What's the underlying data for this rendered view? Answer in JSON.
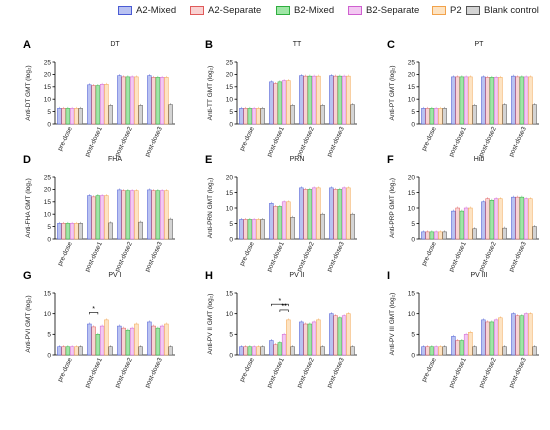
{
  "legend": [
    {
      "label": "A2-Mixed",
      "fill": "#b9c2f2",
      "stroke": "#4a5bd4"
    },
    {
      "label": "A2-Separate",
      "fill": "#f9d2d2",
      "stroke": "#e05a5a"
    },
    {
      "label": "B2-Mixed",
      "fill": "#9fe6a6",
      "stroke": "#2fae3f"
    },
    {
      "label": "B2-Separate",
      "fill": "#f3c8f2",
      "stroke": "#cf5fd0"
    },
    {
      "label": "P2",
      "fill": "#fde3c2",
      "stroke": "#f2a24a"
    },
    {
      "label": "Blank control",
      "fill": "#d4d4d4",
      "stroke": "#555555"
    }
  ],
  "categories": [
    "pre-dose",
    "post-dose1",
    "post-dose2",
    "post-dose3"
  ],
  "chart_data": [
    {
      "type": "bar",
      "letter": "A",
      "title": "DT",
      "ylabel": "Anti-DT GMT",
      "ylabel_unit": "(log₂)",
      "ylim": [
        0,
        25
      ],
      "yticks": [
        0,
        5,
        10,
        15,
        20,
        25
      ],
      "categories": [
        "pre-dose",
        "post-dose1",
        "post-dose2",
        "post-dose3"
      ],
      "series": [
        {
          "name": "A2-Mixed",
          "values": [
            6.3,
            15.8,
            19.5,
            19.5
          ]
        },
        {
          "name": "A2-Separate",
          "values": [
            6.3,
            15.5,
            19.0,
            18.8
          ]
        },
        {
          "name": "B2-Mixed",
          "values": [
            6.3,
            15.5,
            19.0,
            18.8
          ]
        },
        {
          "name": "B2-Separate",
          "values": [
            6.3,
            16.0,
            19.0,
            18.8
          ]
        },
        {
          "name": "P2",
          "values": [
            6.3,
            16.0,
            19.0,
            18.8
          ]
        },
        {
          "name": "Blank control",
          "values": [
            6.3,
            7.5,
            7.5,
            7.8
          ]
        }
      ]
    },
    {
      "type": "bar",
      "letter": "B",
      "title": "TT",
      "ylabel": "Anti-TT GMT",
      "ylabel_unit": "(log₂)",
      "ylim": [
        0,
        25
      ],
      "yticks": [
        0,
        5,
        10,
        15,
        20,
        25
      ],
      "categories": [
        "pre-dose",
        "post-dose1",
        "post-dose2",
        "post-dose3"
      ],
      "series": [
        {
          "name": "A2-Mixed",
          "values": [
            6.3,
            17.0,
            19.5,
            19.5
          ]
        },
        {
          "name": "A2-Separate",
          "values": [
            6.3,
            16.3,
            19.3,
            19.3
          ]
        },
        {
          "name": "B2-Mixed",
          "values": [
            6.3,
            17.0,
            19.3,
            19.3
          ]
        },
        {
          "name": "B2-Separate",
          "values": [
            6.3,
            17.5,
            19.3,
            19.3
          ]
        },
        {
          "name": "P2",
          "values": [
            6.3,
            17.5,
            19.3,
            19.3
          ]
        },
        {
          "name": "Blank control",
          "values": [
            6.3,
            7.5,
            7.5,
            7.8
          ]
        }
      ]
    },
    {
      "type": "bar",
      "letter": "C",
      "title": "PT",
      "ylabel": "Anti-PT GMT",
      "ylabel_unit": "(log₂)",
      "ylim": [
        0,
        25
      ],
      "yticks": [
        0,
        5,
        10,
        15,
        20,
        25
      ],
      "categories": [
        "pre-dose",
        "post-dose1",
        "post-dose2",
        "post-dose3"
      ],
      "series": [
        {
          "name": "A2-Mixed",
          "values": [
            6.3,
            19.0,
            19.0,
            19.3
          ]
        },
        {
          "name": "A2-Separate",
          "values": [
            6.3,
            19.0,
            18.8,
            19.0
          ]
        },
        {
          "name": "B2-Mixed",
          "values": [
            6.3,
            19.0,
            18.8,
            19.0
          ]
        },
        {
          "name": "B2-Separate",
          "values": [
            6.3,
            19.0,
            18.8,
            19.0
          ]
        },
        {
          "name": "P2",
          "values": [
            6.3,
            19.0,
            18.8,
            19.0
          ]
        },
        {
          "name": "Blank control",
          "values": [
            6.3,
            7.5,
            7.8,
            7.8
          ]
        }
      ]
    },
    {
      "type": "bar",
      "letter": "D",
      "title": "FHA",
      "ylabel": "Anti-FHA GMT",
      "ylabel_unit": "(log₂)",
      "ylim": [
        0,
        25
      ],
      "yticks": [
        0,
        5,
        10,
        15,
        20,
        25
      ],
      "categories": [
        "pre-dose",
        "post-dose1",
        "post-dose2",
        "post-dose3"
      ],
      "series": [
        {
          "name": "A2-Mixed",
          "values": [
            6.3,
            17.5,
            19.8,
            19.8
          ]
        },
        {
          "name": "A2-Separate",
          "values": [
            6.3,
            17.0,
            19.5,
            19.5
          ]
        },
        {
          "name": "B2-Mixed",
          "values": [
            6.3,
            17.5,
            19.5,
            19.5
          ]
        },
        {
          "name": "B2-Separate",
          "values": [
            6.3,
            17.5,
            19.5,
            19.5
          ]
        },
        {
          "name": "P2",
          "values": [
            6.3,
            17.5,
            19.5,
            19.5
          ]
        },
        {
          "name": "Blank control",
          "values": [
            6.3,
            6.5,
            6.8,
            8.0
          ]
        }
      ]
    },
    {
      "type": "bar",
      "letter": "E",
      "title": "PRN",
      "ylabel": "Anti-PRN GMT",
      "ylabel_unit": "(log₂)",
      "ylim": [
        0,
        20
      ],
      "yticks": [
        0,
        5,
        10,
        15,
        20
      ],
      "categories": [
        "pre-dose",
        "post-dose1",
        "post-dose2",
        "post-dose3"
      ],
      "series": [
        {
          "name": "A2-Mixed",
          "values": [
            6.3,
            11.5,
            16.5,
            16.5
          ]
        },
        {
          "name": "A2-Separate",
          "values": [
            6.3,
            10.5,
            16.0,
            16.0
          ]
        },
        {
          "name": "B2-Mixed",
          "values": [
            6.3,
            10.5,
            16.0,
            16.0
          ]
        },
        {
          "name": "B2-Separate",
          "values": [
            6.3,
            12.0,
            16.5,
            16.5
          ]
        },
        {
          "name": "P2",
          "values": [
            6.3,
            12.0,
            16.5,
            16.5
          ]
        },
        {
          "name": "Blank control",
          "values": [
            6.3,
            7.0,
            8.0,
            8.0
          ]
        }
      ]
    },
    {
      "type": "bar",
      "letter": "F",
      "title": "Hib",
      "ylabel": "Anti-PRP GMT",
      "ylabel_unit": "(log₂)",
      "ylim": [
        0,
        20
      ],
      "yticks": [
        0,
        5,
        10,
        15,
        20
      ],
      "categories": [
        "pre-dose",
        "post-dose1",
        "post-dose2",
        "post-dose3"
      ],
      "series": [
        {
          "name": "A2-Mixed",
          "values": [
            2.3,
            9.0,
            12.0,
            13.5
          ]
        },
        {
          "name": "A2-Separate",
          "values": [
            2.3,
            10.0,
            13.0,
            13.5
          ]
        },
        {
          "name": "B2-Mixed",
          "values": [
            2.3,
            9.0,
            12.5,
            13.5
          ]
        },
        {
          "name": "B2-Separate",
          "values": [
            2.3,
            10.0,
            13.0,
            13.0
          ]
        },
        {
          "name": "P2",
          "values": [
            2.3,
            10.0,
            13.0,
            13.0
          ]
        },
        {
          "name": "Blank control",
          "values": [
            2.3,
            3.3,
            3.5,
            4.0
          ]
        }
      ]
    },
    {
      "type": "bar",
      "letter": "G",
      "title": "PV I",
      "ylabel": "Anti-PVI GMT",
      "ylabel_unit": "(log₂)",
      "ylim": [
        0,
        15
      ],
      "yticks": [
        0,
        5,
        10,
        15
      ],
      "categories": [
        "pre-dose",
        "post-dose1",
        "post-dose2",
        "post-dose3"
      ],
      "series": [
        {
          "name": "A2-Mixed",
          "values": [
            2.0,
            7.5,
            7.0,
            8.0
          ]
        },
        {
          "name": "A2-Separate",
          "values": [
            2.0,
            6.8,
            6.5,
            7.0
          ]
        },
        {
          "name": "B2-Mixed",
          "values": [
            2.0,
            5.0,
            6.0,
            6.5
          ]
        },
        {
          "name": "B2-Separate",
          "values": [
            2.0,
            7.0,
            6.5,
            7.0
          ]
        },
        {
          "name": "P2",
          "values": [
            2.0,
            8.5,
            7.5,
            7.5
          ]
        },
        {
          "name": "Blank control",
          "values": [
            2.0,
            2.0,
            2.0,
            2.0
          ]
        }
      ]
    },
    {
      "type": "bar",
      "letter": "H",
      "title": "PV II",
      "ylabel": "Anti-PV II GMT",
      "ylabel_unit": "(log₂)",
      "ylim": [
        0,
        15
      ],
      "yticks": [
        0,
        5,
        10,
        15
      ],
      "categories": [
        "pre-dose",
        "post-dose1",
        "post-dose2",
        "post-dose3"
      ],
      "series": [
        {
          "name": "A2-Mixed",
          "values": [
            2.0,
            3.5,
            8.0,
            10.0
          ]
        },
        {
          "name": "A2-Separate",
          "values": [
            2.0,
            2.5,
            7.5,
            9.5
          ]
        },
        {
          "name": "B2-Mixed",
          "values": [
            2.0,
            3.0,
            7.5,
            9.0
          ]
        },
        {
          "name": "B2-Separate",
          "values": [
            2.0,
            5.0,
            8.0,
            9.5
          ]
        },
        {
          "name": "P2",
          "values": [
            2.0,
            8.5,
            8.5,
            10.0
          ]
        },
        {
          "name": "Blank control",
          "values": [
            2.0,
            2.0,
            2.0,
            2.0
          ]
        }
      ]
    },
    {
      "type": "bar",
      "letter": "I",
      "title": "PV III",
      "ylabel": "Anti-PV III GMT",
      "ylabel_unit": "(log₂)",
      "ylim": [
        0,
        15
      ],
      "yticks": [
        0,
        5,
        10,
        15
      ],
      "categories": [
        "pre-dose",
        "post-dose1",
        "post-dose2",
        "post-dose3"
      ],
      "series": [
        {
          "name": "A2-Mixed",
          "values": [
            2.0,
            4.5,
            8.5,
            10.0
          ]
        },
        {
          "name": "A2-Separate",
          "values": [
            2.0,
            3.5,
            8.0,
            9.5
          ]
        },
        {
          "name": "B2-Mixed",
          "values": [
            2.0,
            3.5,
            8.0,
            9.5
          ]
        },
        {
          "name": "B2-Separate",
          "values": [
            2.0,
            5.0,
            8.5,
            10.0
          ]
        },
        {
          "name": "P2",
          "values": [
            2.0,
            5.5,
            9.0,
            10.0
          ]
        },
        {
          "name": "Blank control",
          "values": [
            2.0,
            2.0,
            2.0,
            2.0
          ]
        }
      ]
    }
  ],
  "significance": [
    {
      "panel": "G",
      "label": "*"
    },
    {
      "panel": "H",
      "label": "*"
    },
    {
      "panel": "H",
      "label": "**"
    }
  ]
}
